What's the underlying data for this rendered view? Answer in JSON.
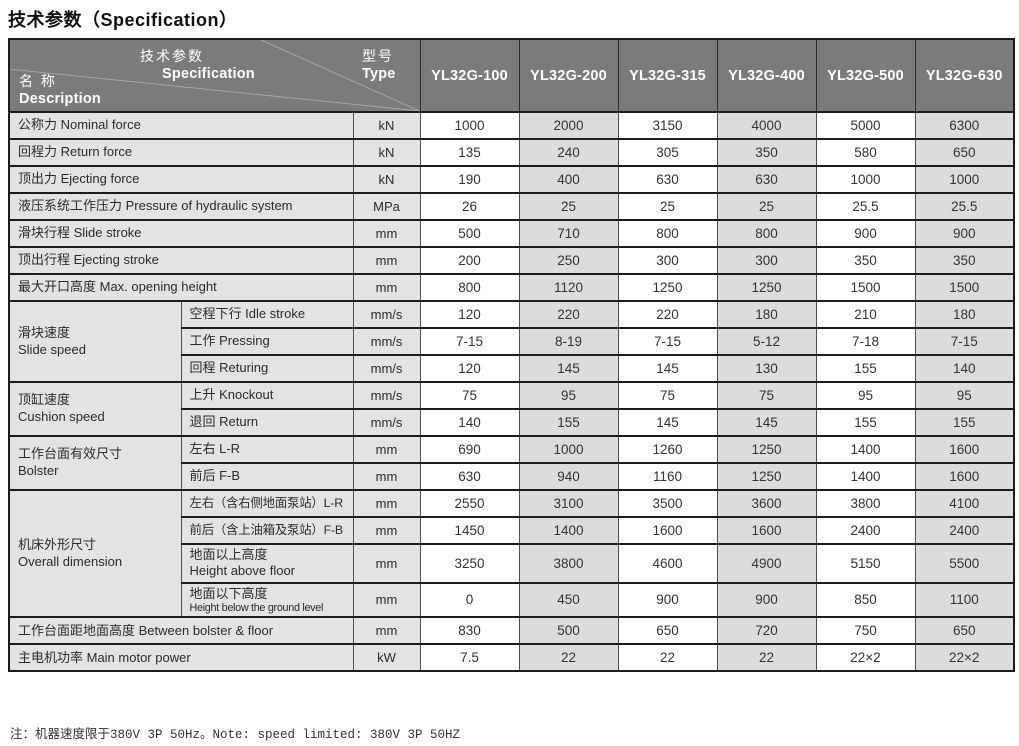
{
  "title": "技术参数（Specification）",
  "header": {
    "spec_cn": "技术参数",
    "spec_en": "Specification",
    "desc_cn": "名 称",
    "desc_en": "Description",
    "type_cn": "型号",
    "type_en": "Type",
    "models": [
      "YL32G-100",
      "YL32G-200",
      "YL32G-315",
      "YL32G-400",
      "YL32G-500",
      "YL32G-630"
    ]
  },
  "table": {
    "rows": [
      {
        "full": true,
        "label_lines": [
          "公称力 Nominal force"
        ],
        "unit": "kN",
        "values": [
          "1000",
          "2000",
          "3150",
          "4000",
          "5000",
          "6300"
        ]
      },
      {
        "full": true,
        "label_lines": [
          "回程力 Return force"
        ],
        "unit": "kN",
        "values": [
          "135",
          "240",
          "305",
          "350",
          "580",
          "650"
        ]
      },
      {
        "full": true,
        "label_lines": [
          "顶出力 Ejecting force"
        ],
        "unit": "kN",
        "values": [
          "190",
          "400",
          "630",
          "630",
          "1000",
          "1000"
        ]
      },
      {
        "full": true,
        "label_lines": [
          "液压系统工作压力 Pressure of hydraulic system"
        ],
        "unit": "MPa",
        "values": [
          "26",
          "25",
          "25",
          "25",
          "25.5",
          "25.5"
        ]
      },
      {
        "full": true,
        "label_lines": [
          "滑块行程 Slide stroke"
        ],
        "unit": "mm",
        "values": [
          "500",
          "710",
          "800",
          "800",
          "900",
          "900"
        ]
      },
      {
        "full": true,
        "label_lines": [
          "顶出行程 Ejecting stroke"
        ],
        "unit": "mm",
        "values": [
          "200",
          "250",
          "300",
          "300",
          "350",
          "350"
        ]
      },
      {
        "full": true,
        "label_lines": [
          "最大开口高度 Max. opening height"
        ],
        "unit": "mm",
        "values": [
          "800",
          "1120",
          "1250",
          "1250",
          "1500",
          "1500"
        ]
      },
      {
        "group": {
          "lines": [
            "滑块速度",
            "Slide speed"
          ],
          "span": 3
        },
        "label_lines": [
          "空程下行 Idle stroke"
        ],
        "unit": "mm/s",
        "values": [
          "120",
          "220",
          "220",
          "180",
          "210",
          "180"
        ]
      },
      {
        "label_lines": [
          "工作 Pressing"
        ],
        "unit": "mm/s",
        "values": [
          "7-15",
          "8-19",
          "7-15",
          "5-12",
          "7-18",
          "7-15"
        ]
      },
      {
        "label_lines": [
          "回程 Returing"
        ],
        "unit": "mm/s",
        "values": [
          "120",
          "145",
          "145",
          "130",
          "155",
          "140"
        ]
      },
      {
        "group": {
          "lines": [
            "顶缸速度",
            "Cushion speed"
          ],
          "span": 2
        },
        "label_lines": [
          "上升 Knockout"
        ],
        "unit": "mm/s",
        "values": [
          "75",
          "95",
          "75",
          "75",
          "95",
          "95"
        ]
      },
      {
        "label_lines": [
          "退回 Return"
        ],
        "unit": "mm/s",
        "values": [
          "140",
          "155",
          "145",
          "145",
          "155",
          "155"
        ]
      },
      {
        "group": {
          "lines": [
            "工作台面有效尺寸",
            "Bolster"
          ],
          "span": 2
        },
        "label_lines": [
          "左右 L-R"
        ],
        "unit": "mm",
        "values": [
          "690",
          "1000",
          "1260",
          "1250",
          "1400",
          "1600"
        ]
      },
      {
        "label_lines": [
          "前后 F-B"
        ],
        "unit": "mm",
        "values": [
          "630",
          "940",
          "1160",
          "1250",
          "1400",
          "1600"
        ]
      },
      {
        "group": {
          "lines": [
            "机床外形尺寸",
            "Overall dimension"
          ],
          "span": 4
        },
        "label_lines": [
          "左右（含右侧地面泵站）L-R"
        ],
        "compact": true,
        "unit": "mm",
        "values": [
          "2550",
          "3100",
          "3500",
          "3600",
          "3800",
          "4100"
        ]
      },
      {
        "label_lines": [
          "前后（含上油箱及泵站）F-B"
        ],
        "compact": true,
        "unit": "mm",
        "values": [
          "1450",
          "1400",
          "1600",
          "1600",
          "2400",
          "2400"
        ]
      },
      {
        "label_lines": [
          "地面以上高度",
          "Height above floor"
        ],
        "tall": true,
        "unit": "mm",
        "values": [
          "3250",
          "3800",
          "4600",
          "4900",
          "5150",
          "5500"
        ]
      },
      {
        "label_lines": [
          "地面以下高度",
          "Height below the ground level"
        ],
        "small_last": true,
        "unit": "mm",
        "values": [
          "0",
          "450",
          "900",
          "900",
          "850",
          "1100"
        ]
      },
      {
        "full": true,
        "label_lines": [
          "工作台面距地面高度 Between bolster & floor"
        ],
        "unit": "mm",
        "values": [
          "830",
          "500",
          "650",
          "720",
          "750",
          "650"
        ]
      },
      {
        "full": true,
        "label_lines": [
          "主电机功率 Main motor power"
        ],
        "unit": "kW",
        "values": [
          "7.5",
          "22",
          "22",
          "22",
          "22×2",
          "22×2"
        ]
      }
    ]
  },
  "note": "注：机器速度限于380V 3P 50Hz。Note: speed limited: 380V 3P 50HZ",
  "colors": {
    "header_bg": "#7b7b7b",
    "label_bg": "#e3e3e3",
    "stripe_bg": "#dcdcdc",
    "border_dark": "#1c1c1c",
    "header_text": "#ffffff"
  }
}
